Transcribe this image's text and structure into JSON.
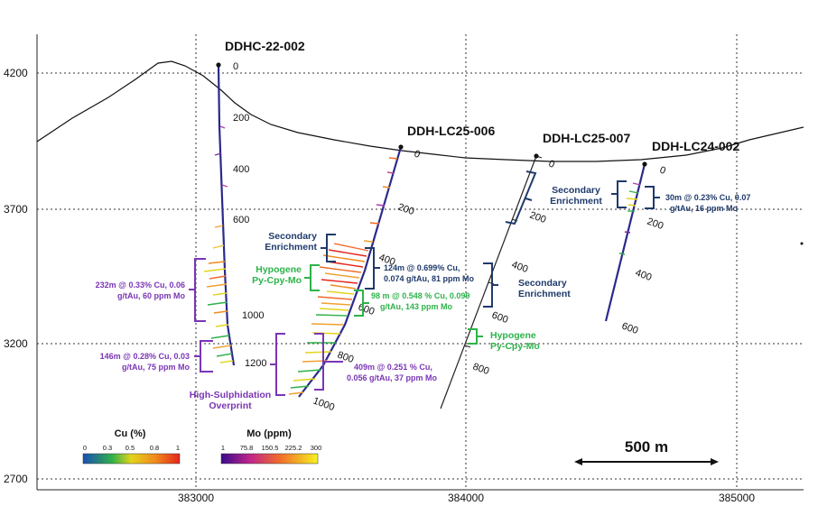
{
  "axes": {
    "x_ticks": [
      "383000",
      "384000",
      "385000"
    ],
    "y_ticks": [
      "4200",
      "3700",
      "3200",
      "2700"
    ]
  },
  "drillholes": [
    {
      "name": "DDHC-22-002",
      "depths": [
        "0",
        "200",
        "400",
        "600",
        "1000",
        "1200"
      ]
    },
    {
      "name": "DDH-LC25-006",
      "depths": [
        "0",
        "200",
        "400",
        "600",
        "800",
        "1000"
      ]
    },
    {
      "name": "DDH-LC25-007",
      "depths": [
        "0",
        "200",
        "400",
        "600",
        "800"
      ]
    },
    {
      "name": "DDH-LC24-002",
      "depths": [
        "0",
        "200",
        "400",
        "600"
      ]
    }
  ],
  "intercepts": {
    "hole1_upper": [
      "232m @ 0.33% Cu, 0.06",
      "g/tAu, 60 ppm Mo"
    ],
    "hole1_lower": [
      "146m @ 0.28% Cu, 0.03",
      "g/tAu, 75 ppm Mo"
    ],
    "hole1_zone": [
      "High-Sulphidation",
      "Overprint"
    ],
    "hole2_secondary": [
      "Secondary",
      "Enrichment"
    ],
    "hole2_hypogene": [
      "Hypogene",
      "Py-Cpy-Mo"
    ],
    "hole2_int1": [
      "124m @ 0.699% Cu,",
      "0.074 g/tAu, 81 ppm Mo"
    ],
    "hole2_int2": [
      "98 m @ 0.548 % Cu, 0.099",
      "g/tAu, 143 ppm Mo"
    ],
    "hole2_int3": [
      "409m @ 0.251 % Cu,",
      "0.056 g/tAu, 37 ppm Mo"
    ],
    "hole3_secondary": [
      "Secondary",
      "Enrichment"
    ],
    "hole3_hypogene": [
      "Hypogene",
      "Py-Cpy-Mo"
    ],
    "hole4_secondary": [
      "Secondary",
      "Enrichment"
    ],
    "hole4_int": [
      "30m @ 0.23% Cu, 0.07",
      "g/tAu, 16 ppm Mo"
    ]
  },
  "legend_cu": {
    "title": "Cu (%)",
    "ticks": [
      "0",
      "0.3",
      "0.5",
      "0.8",
      "1"
    ]
  },
  "legend_mo": {
    "title": "Mo (ppm)",
    "ticks": [
      "1",
      "75.8",
      "150.5",
      "225.2",
      "300"
    ]
  },
  "scale_bar": "500 m",
  "colors": {
    "secondary": "#1f3a6b",
    "hypogene": "#2db34a",
    "intercept_purple": "#7a35b5",
    "intercept_blue": "#1f3a6b"
  }
}
